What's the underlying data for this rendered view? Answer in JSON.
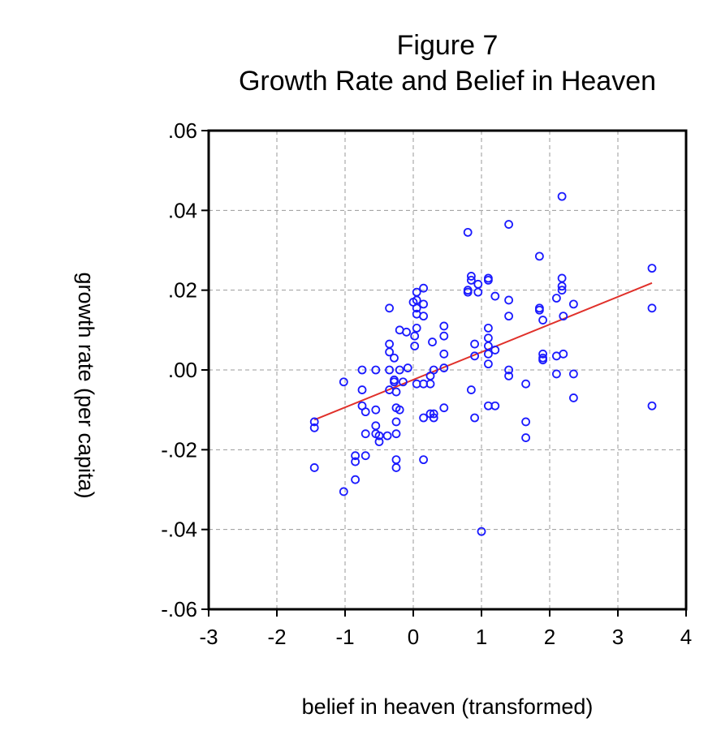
{
  "chart_data": {
    "type": "scatter",
    "title": "Figure 7",
    "subtitle": "Growth Rate and Belief in Heaven",
    "xlabel": "belief in heaven (transformed)",
    "ylabel": "growth rate (per capita)",
    "xlim": [
      -3,
      4
    ],
    "ylim": [
      -0.06,
      0.06
    ],
    "xticks": [
      -3,
      -2,
      -1,
      0,
      1,
      2,
      3,
      4
    ],
    "xtick_labels": [
      "-3",
      "-2",
      "-1",
      "0",
      "1",
      "2",
      "3",
      "4"
    ],
    "yticks": [
      0.06,
      0.04,
      0.02,
      0.0,
      -0.02,
      -0.04,
      -0.06
    ],
    "ytick_labels": [
      ".06",
      ".04",
      ".02",
      ".00",
      "-.02",
      "-.04",
      "-.06"
    ],
    "grid": true,
    "marker_color": "#1a1aff",
    "fit_color": "#e0302a",
    "fit_line": {
      "x": [
        -1.45,
        3.5
      ],
      "y": [
        -0.0125,
        0.0218
      ]
    },
    "points": [
      [
        -1.45,
        -0.013
      ],
      [
        -1.45,
        -0.0145
      ],
      [
        -1.45,
        -0.0245
      ],
      [
        -1.02,
        -0.003
      ],
      [
        -1.02,
        -0.0305
      ],
      [
        -0.85,
        -0.0215
      ],
      [
        -0.85,
        -0.023
      ],
      [
        -0.85,
        -0.0275
      ],
      [
        -0.75,
        -0.009
      ],
      [
        -0.75,
        -0.005
      ],
      [
        -0.75,
        0.0
      ],
      [
        -0.7,
        -0.0105
      ],
      [
        -0.7,
        -0.016
      ],
      [
        -0.7,
        -0.0215
      ],
      [
        -0.55,
        0.0
      ],
      [
        -0.55,
        -0.01
      ],
      [
        -0.55,
        -0.014
      ],
      [
        -0.55,
        -0.016
      ],
      [
        -0.5,
        -0.0165
      ],
      [
        -0.5,
        -0.018
      ],
      [
        -0.38,
        -0.0165
      ],
      [
        -0.35,
        0.0065
      ],
      [
        -0.35,
        0.0045
      ],
      [
        -0.35,
        0.0
      ],
      [
        -0.35,
        0.0155
      ],
      [
        -0.35,
        -0.005
      ],
      [
        -0.28,
        -0.0025
      ],
      [
        -0.28,
        -0.003
      ],
      [
        -0.28,
        0.003
      ],
      [
        -0.25,
        -0.0055
      ],
      [
        -0.25,
        -0.0095
      ],
      [
        -0.25,
        -0.013
      ],
      [
        -0.25,
        -0.016
      ],
      [
        -0.25,
        -0.0225
      ],
      [
        -0.25,
        -0.0245
      ],
      [
        -0.2,
        -0.01
      ],
      [
        -0.2,
        0.01
      ],
      [
        -0.2,
        0.0
      ],
      [
        -0.15,
        -0.003
      ],
      [
        -0.1,
        0.0095
      ],
      [
        -0.08,
        0.0005
      ],
      [
        0.0,
        0.017
      ],
      [
        0.02,
        0.0085
      ],
      [
        0.02,
        0.006
      ],
      [
        0.05,
        0.0195
      ],
      [
        0.05,
        0.0175
      ],
      [
        0.05,
        0.0155
      ],
      [
        0.05,
        0.014
      ],
      [
        0.05,
        0.0105
      ],
      [
        0.05,
        -0.0035
      ],
      [
        0.15,
        0.0205
      ],
      [
        0.15,
        0.0165
      ],
      [
        0.15,
        0.0135
      ],
      [
        0.15,
        -0.0035
      ],
      [
        0.15,
        -0.012
      ],
      [
        0.15,
        -0.0225
      ],
      [
        0.25,
        -0.0035
      ],
      [
        0.25,
        -0.0015
      ],
      [
        0.25,
        -0.011
      ],
      [
        0.28,
        0.007
      ],
      [
        0.3,
        -0.012
      ],
      [
        0.3,
        -0.011
      ],
      [
        0.3,
        0.0
      ],
      [
        0.45,
        0.011
      ],
      [
        0.45,
        0.0085
      ],
      [
        0.45,
        0.004
      ],
      [
        0.45,
        0.0005
      ],
      [
        0.45,
        -0.0095
      ],
      [
        0.8,
        0.0345
      ],
      [
        0.8,
        0.02
      ],
      [
        0.8,
        0.0195
      ],
      [
        0.85,
        0.0235
      ],
      [
        0.85,
        0.0225
      ],
      [
        0.85,
        -0.005
      ],
      [
        0.9,
        0.0065
      ],
      [
        0.9,
        0.0035
      ],
      [
        0.9,
        -0.012
      ],
      [
        0.95,
        0.0195
      ],
      [
        0.95,
        0.0215
      ],
      [
        1.0,
        -0.0405
      ],
      [
        1.1,
        0.023
      ],
      [
        1.1,
        0.0225
      ],
      [
        1.1,
        0.0105
      ],
      [
        1.1,
        0.008
      ],
      [
        1.1,
        0.006
      ],
      [
        1.1,
        0.004
      ],
      [
        1.1,
        0.0015
      ],
      [
        1.1,
        -0.009
      ],
      [
        1.2,
        0.0185
      ],
      [
        1.2,
        0.005
      ],
      [
        1.2,
        -0.009
      ],
      [
        1.4,
        0.0365
      ],
      [
        1.4,
        0.0175
      ],
      [
        1.4,
        0.0135
      ],
      [
        1.4,
        0.0
      ],
      [
        1.4,
        -0.0015
      ],
      [
        1.65,
        -0.0035
      ],
      [
        1.65,
        -0.013
      ],
      [
        1.65,
        -0.017
      ],
      [
        1.85,
        0.0285
      ],
      [
        1.85,
        0.0155
      ],
      [
        1.85,
        0.015
      ],
      [
        1.9,
        0.0125
      ],
      [
        1.9,
        0.004
      ],
      [
        1.9,
        0.003
      ],
      [
        1.9,
        0.0025
      ],
      [
        2.1,
        0.018
      ],
      [
        2.1,
        0.0035
      ],
      [
        2.1,
        -0.001
      ],
      [
        2.18,
        0.0435
      ],
      [
        2.18,
        0.023
      ],
      [
        2.18,
        0.021
      ],
      [
        2.18,
        0.02
      ],
      [
        2.2,
        0.0135
      ],
      [
        2.2,
        0.004
      ],
      [
        2.35,
        0.0165
      ],
      [
        2.35,
        -0.001
      ],
      [
        2.35,
        -0.007
      ],
      [
        3.5,
        0.0255
      ],
      [
        3.5,
        0.0155
      ],
      [
        3.5,
        -0.009
      ]
    ]
  }
}
